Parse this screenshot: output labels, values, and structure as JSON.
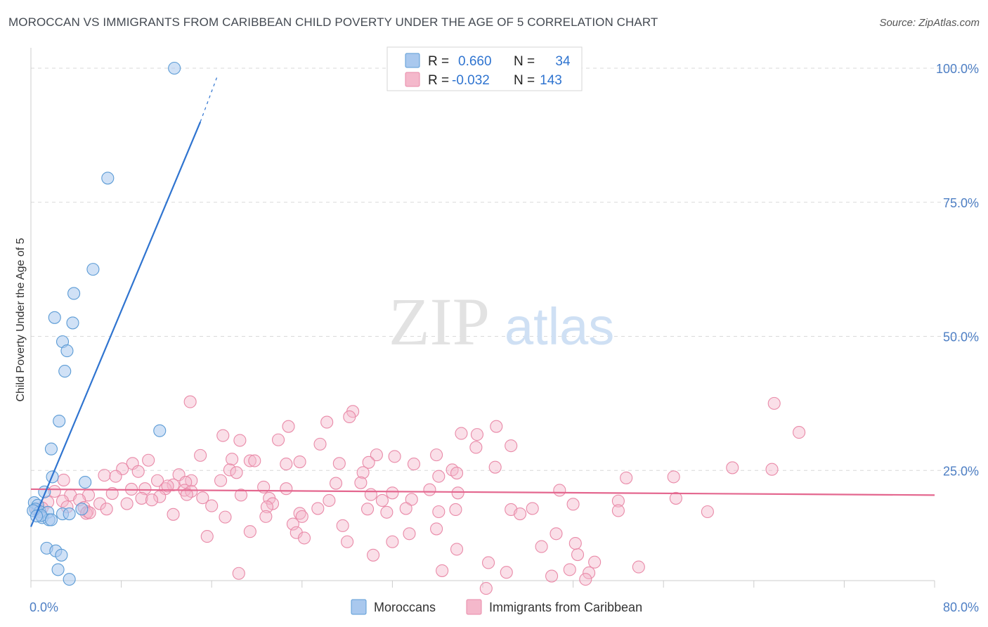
{
  "title": "MOROCCAN VS IMMIGRANTS FROM CARIBBEAN CHILD POVERTY UNDER THE AGE OF 5 CORRELATION CHART",
  "source": "Source: ZipAtlas.com",
  "watermark": {
    "zip": "ZIP",
    "atlas": "atlas"
  },
  "colors": {
    "blue": "#5b9bd5",
    "blue_fill": "#a9c8ee",
    "blue_line": "#2f74d0",
    "pink": "#e98aa8",
    "pink_fill": "#f4b8cb",
    "pink_line": "#e4678f",
    "axis_text": "#4e7fc4",
    "grid": "#d9d9d9"
  },
  "legend": {
    "rows": [
      {
        "r_label": "R =",
        "r_value": "0.660",
        "n_label": "N =",
        "n_value": "34"
      },
      {
        "r_label": "R =",
        "r_value": "-0.032",
        "n_label": "N =",
        "n_value": "143"
      }
    ]
  },
  "chart_data": {
    "type": "scatter",
    "xlabel": "",
    "ylabel": "Child Poverty Under the Age of 5",
    "xlim": [
      0,
      80
    ],
    "ylim": [
      0,
      100
    ],
    "x_tick_labels": [
      "0.0%",
      "80.0%"
    ],
    "y_tick_labels": [
      "100.0%",
      "75.0%",
      "50.0%",
      "25.0%"
    ],
    "y_ticks": [
      100,
      75,
      50,
      25
    ],
    "series": [
      {
        "name": "Moroccans",
        "trend": {
          "x0": 0,
          "y0": 14.5,
          "x1": 15,
          "y1": 90,
          "dash_to_x": 16.5,
          "dash_to_y": 98.5
        },
        "points": [
          [
            12.7,
            100
          ],
          [
            6.8,
            79.5
          ],
          [
            5.5,
            62.5
          ],
          [
            3.8,
            58
          ],
          [
            2.1,
            53.5
          ],
          [
            3.7,
            52.5
          ],
          [
            2.8,
            49
          ],
          [
            3.2,
            47.3
          ],
          [
            3.0,
            43.5
          ],
          [
            2.5,
            34.2
          ],
          [
            11.4,
            32.4
          ],
          [
            1.8,
            29
          ],
          [
            1.9,
            23.8
          ],
          [
            4.8,
            22.8
          ],
          [
            1.2,
            21
          ],
          [
            0.3,
            19
          ],
          [
            0.6,
            18.5
          ],
          [
            0.4,
            17.8
          ],
          [
            0.8,
            17.3
          ],
          [
            1.5,
            17.2
          ],
          [
            2.8,
            16.9
          ],
          [
            3.4,
            16.9
          ],
          [
            1.0,
            16.2
          ],
          [
            1.6,
            15.8
          ],
          [
            0.9,
            16.6
          ],
          [
            0.2,
            17.5
          ],
          [
            4.5,
            17.8
          ],
          [
            1.8,
            15.8
          ],
          [
            0.5,
            16.5
          ],
          [
            1.4,
            10.5
          ],
          [
            2.2,
            10
          ],
          [
            2.7,
            9.2
          ],
          [
            2.4,
            6.5
          ],
          [
            3.4,
            4.7
          ]
        ]
      },
      {
        "name": "Immigrants from Caribbean",
        "trend": {
          "x0": 0,
          "y0": 21.5,
          "x1": 80,
          "y1": 20.4
        },
        "points": [
          [
            14.1,
            37.8
          ],
          [
            28.5,
            36
          ],
          [
            65.8,
            37.5
          ],
          [
            28.2,
            35
          ],
          [
            26.2,
            34
          ],
          [
            22.8,
            33.2
          ],
          [
            41.2,
            33.2
          ],
          [
            17.0,
            31.5
          ],
          [
            38.1,
            31.9
          ],
          [
            39.5,
            31.7
          ],
          [
            68.0,
            32.1
          ],
          [
            21.9,
            30.7
          ],
          [
            18.5,
            30.6
          ],
          [
            25.6,
            29.9
          ],
          [
            42.5,
            29.6
          ],
          [
            39.4,
            29.3
          ],
          [
            15.0,
            27.8
          ],
          [
            30.6,
            27.9
          ],
          [
            35.9,
            27.9
          ],
          [
            32.2,
            27.6
          ],
          [
            17.8,
            27.1
          ],
          [
            19.4,
            26.8
          ],
          [
            19.8,
            26.8
          ],
          [
            10.4,
            26.9
          ],
          [
            9.0,
            26.3
          ],
          [
            23.8,
            26.6
          ],
          [
            27.3,
            26.3
          ],
          [
            22.6,
            26.2
          ],
          [
            33.9,
            26.2
          ],
          [
            29.9,
            26.5
          ],
          [
            17.6,
            25.1
          ],
          [
            41.1,
            25.6
          ],
          [
            8.1,
            25.3
          ],
          [
            37.3,
            25.1
          ],
          [
            62.1,
            25.5
          ],
          [
            65.6,
            25.2
          ],
          [
            9.5,
            24.8
          ],
          [
            18.2,
            24.6
          ],
          [
            13.1,
            24.2
          ],
          [
            29.4,
            24.6
          ],
          [
            6.5,
            24.1
          ],
          [
            37.7,
            24.5
          ],
          [
            36.1,
            23.9
          ],
          [
            7.5,
            23.9
          ],
          [
            2.9,
            23.2
          ],
          [
            11.2,
            23.1
          ],
          [
            14.2,
            23.1
          ],
          [
            16.8,
            23.1
          ],
          [
            52.7,
            23.6
          ],
          [
            56.9,
            23.8
          ],
          [
            13.7,
            22.8
          ],
          [
            27.0,
            22.6
          ],
          [
            29.2,
            22.7
          ],
          [
            12.6,
            22.3
          ],
          [
            11.9,
            21.6
          ],
          [
            13.6,
            21.3
          ],
          [
            20.6,
            21.9
          ],
          [
            8.9,
            21.5
          ],
          [
            10.1,
            21.6
          ],
          [
            12.1,
            22.1
          ],
          [
            22.6,
            21.6
          ],
          [
            46.8,
            21.3
          ],
          [
            35.3,
            21.4
          ],
          [
            14.2,
            21.1
          ],
          [
            2.1,
            21.1
          ],
          [
            5.1,
            20.4
          ],
          [
            7.2,
            20.7
          ],
          [
            3.5,
            20.4
          ],
          [
            13.8,
            20.5
          ],
          [
            37.8,
            20.8
          ],
          [
            9.8,
            19.8
          ],
          [
            11.4,
            20.1
          ],
          [
            15.2,
            19.9
          ],
          [
            18.6,
            20.4
          ],
          [
            30.1,
            20.5
          ],
          [
            32.0,
            20.8
          ],
          [
            21.1,
            19.8
          ],
          [
            10.7,
            19.5
          ],
          [
            26.4,
            19.4
          ],
          [
            2.8,
            19.3
          ],
          [
            4.3,
            19.5
          ],
          [
            33.7,
            19.6
          ],
          [
            6.1,
            18.8
          ],
          [
            1.5,
            19.1
          ],
          [
            8.5,
            18.8
          ],
          [
            21.4,
            18.8
          ],
          [
            31.1,
            19.4
          ],
          [
            48.0,
            18.7
          ],
          [
            52.0,
            19.3
          ],
          [
            57.1,
            19.8
          ],
          [
            3.2,
            18.2
          ],
          [
            4.7,
            18.1
          ],
          [
            6.7,
            17.8
          ],
          [
            16.0,
            18.4
          ],
          [
            20.9,
            18.2
          ],
          [
            25.4,
            17.9
          ],
          [
            29.8,
            17.8
          ],
          [
            33.2,
            17.9
          ],
          [
            37.6,
            17.7
          ],
          [
            42.5,
            17.7
          ],
          [
            44.4,
            17.9
          ],
          [
            1.0,
            18.0
          ],
          [
            0.6,
            17.6
          ],
          [
            5.0,
            17.3
          ],
          [
            4.9,
            17.0
          ],
          [
            5.2,
            17.1
          ],
          [
            23.8,
            17.0
          ],
          [
            31.5,
            17.2
          ],
          [
            36.1,
            17.3
          ],
          [
            43.3,
            16.9
          ],
          [
            52.0,
            17.5
          ],
          [
            59.9,
            17.3
          ],
          [
            12.6,
            16.8
          ],
          [
            17.2,
            16.3
          ],
          [
            20.8,
            16.4
          ],
          [
            24.0,
            16.4
          ],
          [
            23.2,
            15.0
          ],
          [
            27.6,
            14.7
          ],
          [
            19.4,
            13.6
          ],
          [
            23.5,
            13.4
          ],
          [
            33.5,
            13.2
          ],
          [
            46.5,
            13.2
          ],
          [
            35.9,
            14.1
          ],
          [
            15.6,
            12.7
          ],
          [
            24.2,
            12.4
          ],
          [
            28.0,
            11.7
          ],
          [
            32.0,
            11.7
          ],
          [
            30.3,
            9.2
          ],
          [
            37.7,
            10.3
          ],
          [
            45.2,
            10.8
          ],
          [
            48.4,
            9.3
          ],
          [
            48.2,
            11.4
          ],
          [
            53.8,
            7.0
          ],
          [
            18.4,
            5.8
          ],
          [
            40.5,
            7.8
          ],
          [
            42.1,
            6.0
          ],
          [
            47.7,
            6.5
          ],
          [
            49.9,
            7.9
          ],
          [
            49.4,
            5.9
          ],
          [
            46.1,
            5.3
          ],
          [
            49.1,
            4.7
          ],
          [
            40.3,
            3.0
          ],
          [
            36.4,
            6.3
          ]
        ]
      }
    ]
  }
}
